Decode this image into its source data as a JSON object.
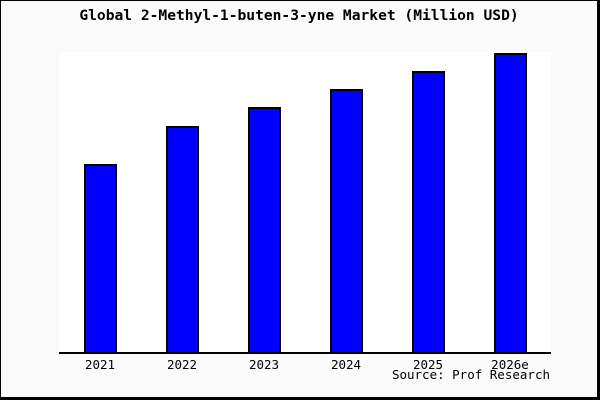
{
  "title": "Global 2-Methyl-1-buten-3-yne Market (Million USD)",
  "source": "Source: Prof Research",
  "colors": {
    "background": "#fafafa",
    "plot_background": "#ffffff",
    "bar_fill": "#0000ff",
    "bar_border": "#000000",
    "axis": "#000000",
    "frame": "#000000",
    "text": "#000000"
  },
  "chart_data": {
    "type": "bar",
    "title": "Global 2-Methyl-1-buten-3-yne Market (Million USD)",
    "categories": [
      "2021",
      "2022",
      "2023",
      "2024",
      "2025",
      "2026e"
    ],
    "values": [
      63,
      75.5,
      82,
      88,
      94,
      100
    ],
    "xlabel": "",
    "ylabel": "",
    "ylim": [
      0,
      100
    ],
    "value_note": "y-axis has no visible tick labels; values are relative bar heights estimated from pixels, normalized so tallest bar (2026e) = 100",
    "grid": false,
    "legend": "none",
    "source": "Source: Prof Research"
  }
}
